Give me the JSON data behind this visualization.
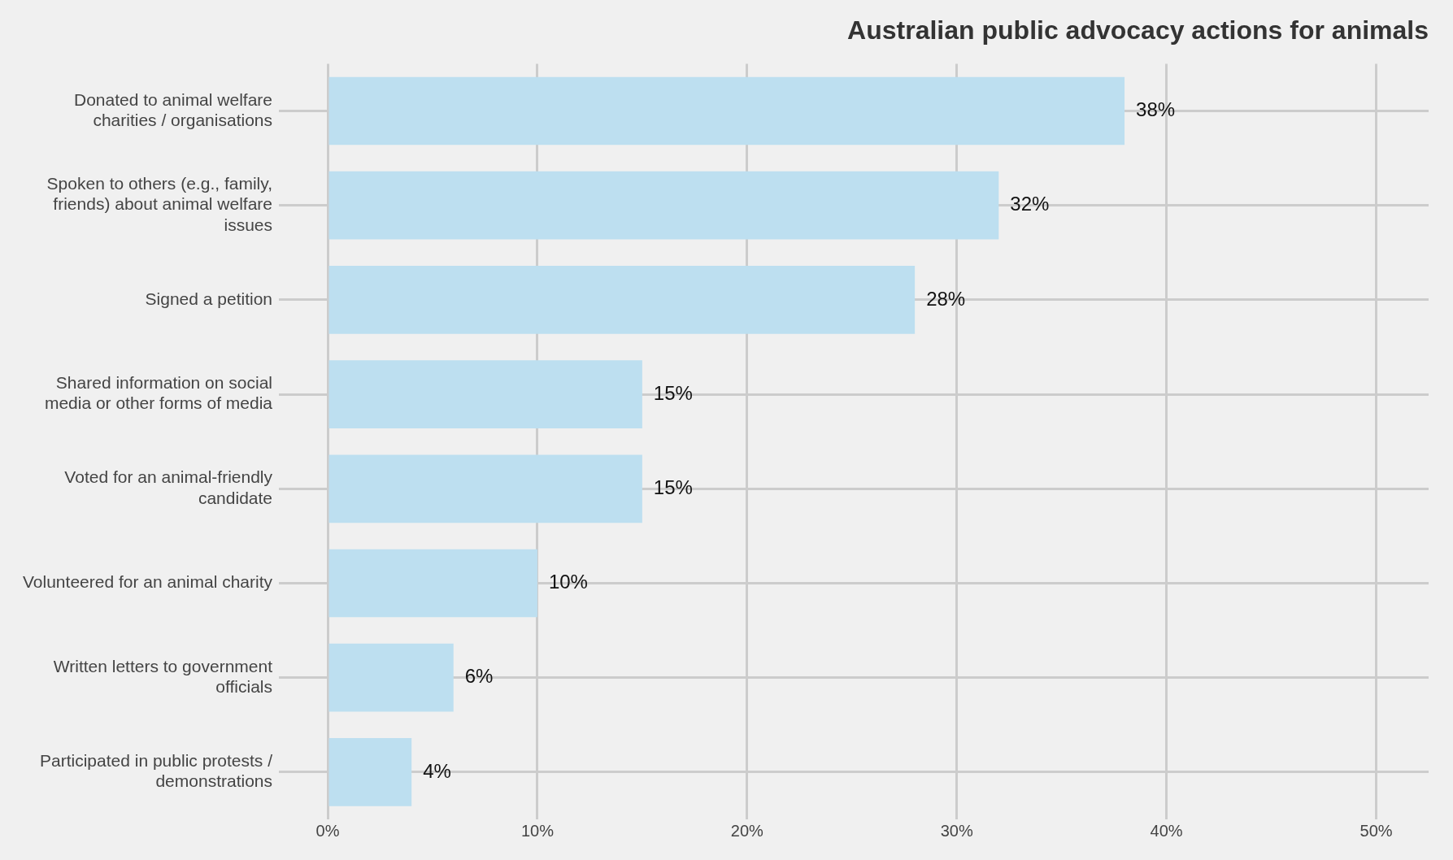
{
  "chart_data": {
    "type": "bar",
    "orientation": "horizontal",
    "title": "Australian public advocacy actions for animals",
    "categories": [
      "Donated to animal welfare charities / organisations",
      "Spoken to others (e.g., family, friends) about animal welfare issues",
      "Signed a petition",
      "Shared information on social media or other forms of media",
      "Voted for an animal-friendly candidate",
      "Volunteered for an animal charity",
      "Written letters to government officials",
      "Participated in public protests / demonstrations"
    ],
    "values": [
      38,
      32,
      28,
      15,
      15,
      10,
      6,
      4
    ],
    "value_labels": [
      "38%",
      "32%",
      "28%",
      "15%",
      "15%",
      "10%",
      "6%",
      "4%"
    ],
    "color": "#bddff0",
    "xlim": [
      0,
      52.5
    ],
    "xticks": [
      {
        "value": 0,
        "label": "0%"
      },
      {
        "value": 10,
        "label": "10%"
      },
      {
        "value": 20,
        "label": "20%"
      },
      {
        "value": 30,
        "label": "30%"
      },
      {
        "value": 40,
        "label": "40%"
      },
      {
        "value": 50,
        "label": "50%"
      }
    ],
    "grid": true,
    "legend": false
  }
}
